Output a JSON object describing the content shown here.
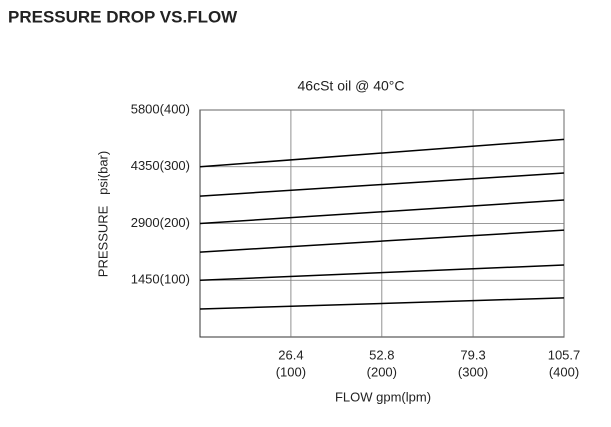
{
  "heading": "PRESSURE DROP VS.FLOW",
  "chart_data": {
    "type": "line",
    "title": "46cSt oil @ 40°C",
    "x_label": "FLOW gpm(lpm)",
    "y_label": "PRESSURE   psi(bar)",
    "x": [
      0,
      105.7
    ],
    "series": [
      {
        "color": "#000000",
        "values": [
          4350,
          5050
        ]
      },
      {
        "color": "#000000",
        "values": [
          3600,
          4190
        ]
      },
      {
        "color": "#000000",
        "values": [
          2900,
          3500
        ]
      },
      {
        "color": "#000000",
        "values": [
          2170,
          2730
        ]
      },
      {
        "color": "#000000",
        "values": [
          1450,
          1840
        ]
      },
      {
        "color": "#000000",
        "values": [
          715,
          1000
        ]
      }
    ],
    "xlim": [
      0,
      105.7
    ],
    "xticks": [
      26.4,
      52.8,
      79.3,
      105.7
    ],
    "xticks_secondary_labels": [
      "(100)",
      "(200)",
      "(300)",
      "(400)"
    ],
    "ylim": [
      0,
      5800
    ],
    "yticks": [
      {
        "value": 1450,
        "label": "1450(100)"
      },
      {
        "value": 2900,
        "label": "2900(200)"
      },
      {
        "value": 4350,
        "label": "4350(300)"
      },
      {
        "value": 5800,
        "label": "5800(400)"
      }
    ],
    "grid": true
  }
}
